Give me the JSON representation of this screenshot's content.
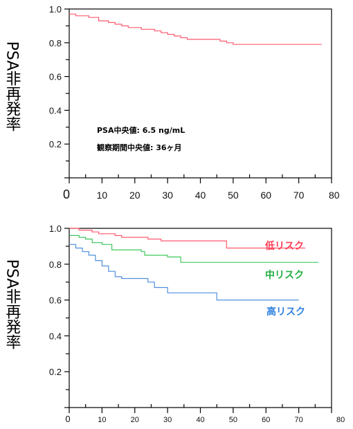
{
  "chart_data": [
    {
      "type": "line",
      "xlabel": "",
      "ylabel": "PSA非再発率",
      "xlim": [
        0,
        80
      ],
      "ylim": [
        0,
        1.0
      ],
      "x_ticks": [
        "0",
        "10",
        "20",
        "30",
        "40",
        "50",
        "60",
        "70",
        "80"
      ],
      "y_ticks": [
        "0.2",
        "0.4",
        "0.6",
        "0.8",
        "1.0"
      ],
      "annotations": [
        "PSA中央値: 6.5 ng/mL",
        "観察期間中央値: 36ヶ月"
      ],
      "grid": false,
      "series": [
        {
          "color": "#ff5a6e",
          "points": [
            [
              0,
              0.97
            ],
            [
              2,
              0.96
            ],
            [
              6,
              0.95
            ],
            [
              9,
              0.93
            ],
            [
              12,
              0.92
            ],
            [
              14,
              0.91
            ],
            [
              16,
              0.9
            ],
            [
              18,
              0.89
            ],
            [
              20,
              0.89
            ],
            [
              22,
              0.88
            ],
            [
              23,
              0.88
            ],
            [
              26,
              0.87
            ],
            [
              28,
              0.86
            ],
            [
              30,
              0.85
            ],
            [
              32,
              0.84
            ],
            [
              34,
              0.83
            ],
            [
              36,
              0.82
            ],
            [
              38,
              0.82
            ],
            [
              40,
              0.82
            ],
            [
              46,
              0.81
            ],
            [
              48,
              0.8
            ],
            [
              50,
              0.79
            ],
            [
              77,
              0.79
            ]
          ]
        }
      ]
    },
    {
      "type": "line",
      "xlabel": "",
      "ylabel": "PSA非再発率",
      "xlim": [
        0,
        80
      ],
      "ylim": [
        0,
        1.0
      ],
      "x_ticks": [
        "0",
        "10",
        "20",
        "30",
        "40",
        "50",
        "60",
        "70",
        "80"
      ],
      "y_ticks": [
        "0.2",
        "0.4",
        "0.6",
        "0.8",
        "1.0"
      ],
      "grid": false,
      "series": [
        {
          "name": "低リスク",
          "color": "#ff5a6e",
          "points": [
            [
              0,
              1.0
            ],
            [
              2,
              1.0
            ],
            [
              3,
              0.99
            ],
            [
              7,
              0.98
            ],
            [
              9,
              0.97
            ],
            [
              14,
              0.96
            ],
            [
              16,
              0.95
            ],
            [
              24,
              0.94
            ],
            [
              28,
              0.93
            ],
            [
              34,
              0.93
            ],
            [
              46,
              0.93
            ],
            [
              48,
              0.89
            ],
            [
              72,
              0.89
            ]
          ]
        },
        {
          "name": "中リスク",
          "color": "#3cc85a",
          "points": [
            [
              0,
              0.96
            ],
            [
              3,
              0.95
            ],
            [
              5,
              0.94
            ],
            [
              7,
              0.92
            ],
            [
              10,
              0.91
            ],
            [
              13,
              0.88
            ],
            [
              18,
              0.88
            ],
            [
              22,
              0.87
            ],
            [
              23,
              0.85
            ],
            [
              30,
              0.84
            ],
            [
              34,
              0.81
            ],
            [
              76,
              0.81
            ]
          ]
        },
        {
          "name": "高リスク",
          "color": "#4f8fdc",
          "points": [
            [
              0,
              0.91
            ],
            [
              2,
              0.89
            ],
            [
              4,
              0.87
            ],
            [
              6,
              0.85
            ],
            [
              8,
              0.82
            ],
            [
              10,
              0.79
            ],
            [
              12,
              0.76
            ],
            [
              14,
              0.73
            ],
            [
              16,
              0.72
            ],
            [
              18,
              0.72
            ],
            [
              24,
              0.7
            ],
            [
              26,
              0.67
            ],
            [
              30,
              0.64
            ],
            [
              36,
              0.64
            ],
            [
              44,
              0.64
            ],
            [
              45,
              0.6
            ],
            [
              70,
              0.6
            ]
          ]
        }
      ]
    }
  ]
}
